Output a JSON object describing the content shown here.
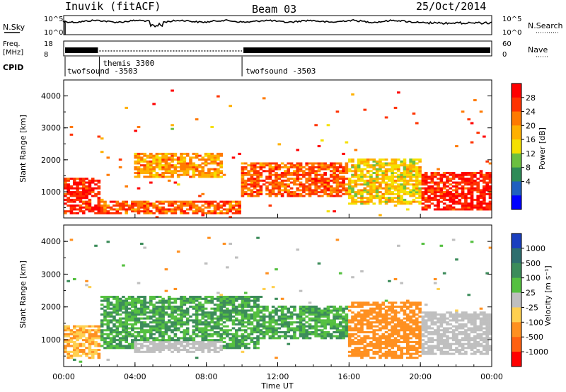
{
  "header": {
    "site": "Inuvik (fitACF)",
    "beam": "Beam 03",
    "date": "25/Oct/2014"
  },
  "top_labels": {
    "nsky": "N.Sky",
    "nsky_hi": "10^5",
    "nsky_lo": "10^0",
    "nsearch": "N.Search",
    "nsearch_hi": "10^5",
    "nsearch_lo": "10^0",
    "freq_l1": "Freq.",
    "freq_l2": "[MHz]",
    "freq_hi": "18",
    "freq_lo": "8",
    "nave": "Nave",
    "nave_hi": "60",
    "nave_lo": "0",
    "cpid": "CPID"
  },
  "cpid_segments": [
    {
      "label": "twofsound -3503",
      "start_h": 0.0,
      "end_h": 2.0
    },
    {
      "label": "themis 3300",
      "start_h": 2.0,
      "end_h": 10.0
    },
    {
      "label": "twofsound -3503",
      "start_h": 10.0,
      "end_h": 24.0
    }
  ],
  "power_panel": {
    "ylabel": "Slant Range [km]",
    "yticks": [
      "1000",
      "2000",
      "3000",
      "4000"
    ],
    "cbar_title": "Power [dB]",
    "cbar_labels": [
      "28",
      "24",
      "20",
      "16",
      "12",
      "8",
      "4"
    ],
    "cbar_colors": [
      "#ff0000",
      "#ff3300",
      "#ff7a00",
      "#ffb000",
      "#f5e000",
      "#6cc040",
      "#2e8b57",
      "#1f5fbf",
      "#0000ff"
    ]
  },
  "velocity_panel": {
    "ylabel": "Slant Range [km]",
    "yticks": [
      "1000",
      "2000",
      "3000",
      "4000"
    ],
    "cbar_title": "Velocity [m s⁻¹]",
    "cbar_labels": [
      "1000",
      "500",
      "100",
      "25",
      "-25",
      "-100",
      "-500",
      "-1000"
    ],
    "cbar_colors": [
      "#1a3fbf",
      "#2e6f6f",
      "#3c8c5a",
      "#55c040",
      "#bfbfbf",
      "#ffd050",
      "#ff9020",
      "#ff6010",
      "#ff0000"
    ]
  },
  "xaxis": {
    "title": "Time UT",
    "ticks": [
      "00:00",
      "04:00",
      "08:00",
      "12:00",
      "16:00",
      "20:00",
      "00:00"
    ]
  },
  "chart_data": {
    "type": "heatmap",
    "title": "Inuvik (fitACF) Beam 03 25/Oct/2014",
    "xlabel": "Time UT",
    "ylabel": "Slant Range [km]",
    "xlim_hours": [
      0,
      24
    ],
    "ylim_km": [
      180,
      4500
    ],
    "series": [
      {
        "name": "Power [dB]",
        "approx_regions": [
          {
            "t_start": 0.0,
            "t_end": 2.0,
            "range_km": [
              300,
              1400
            ],
            "value": 28
          },
          {
            "t_start": 2.0,
            "t_end": 10.0,
            "range_km": [
              250,
              700
            ],
            "value": 24
          },
          {
            "t_start": 4.0,
            "t_end": 9.0,
            "range_km": [
              1400,
              2200
            ],
            "value": 20
          },
          {
            "t_start": 10.0,
            "t_end": 16.0,
            "range_km": [
              800,
              1900
            ],
            "value": 24
          },
          {
            "t_start": 16.0,
            "t_end": 20.0,
            "range_km": [
              600,
              2000
            ],
            "value": 16
          },
          {
            "t_start": 20.0,
            "t_end": 24.0,
            "range_km": [
              400,
              1600
            ],
            "value": 28
          }
        ]
      },
      {
        "name": "Velocity [m s-1]",
        "approx_regions": [
          {
            "t_start": 0.0,
            "t_end": 2.0,
            "range_km": [
              400,
              1400
            ],
            "value": -100
          },
          {
            "t_start": 2.0,
            "t_end": 11.0,
            "range_km": [
              700,
              2300
            ],
            "value": 100
          },
          {
            "t_start": 4.0,
            "t_end": 9.0,
            "range_km": [
              600,
              900
            ],
            "value": 0
          },
          {
            "t_start": 11.0,
            "t_end": 16.0,
            "range_km": [
              1000,
              2000
            ],
            "value": 100
          },
          {
            "t_start": 16.0,
            "t_end": 20.0,
            "range_km": [
              400,
              2100
            ],
            "value": -300
          },
          {
            "t_start": 20.0,
            "t_end": 24.0,
            "range_km": [
              500,
              1800
            ],
            "value": 0
          }
        ]
      }
    ]
  }
}
